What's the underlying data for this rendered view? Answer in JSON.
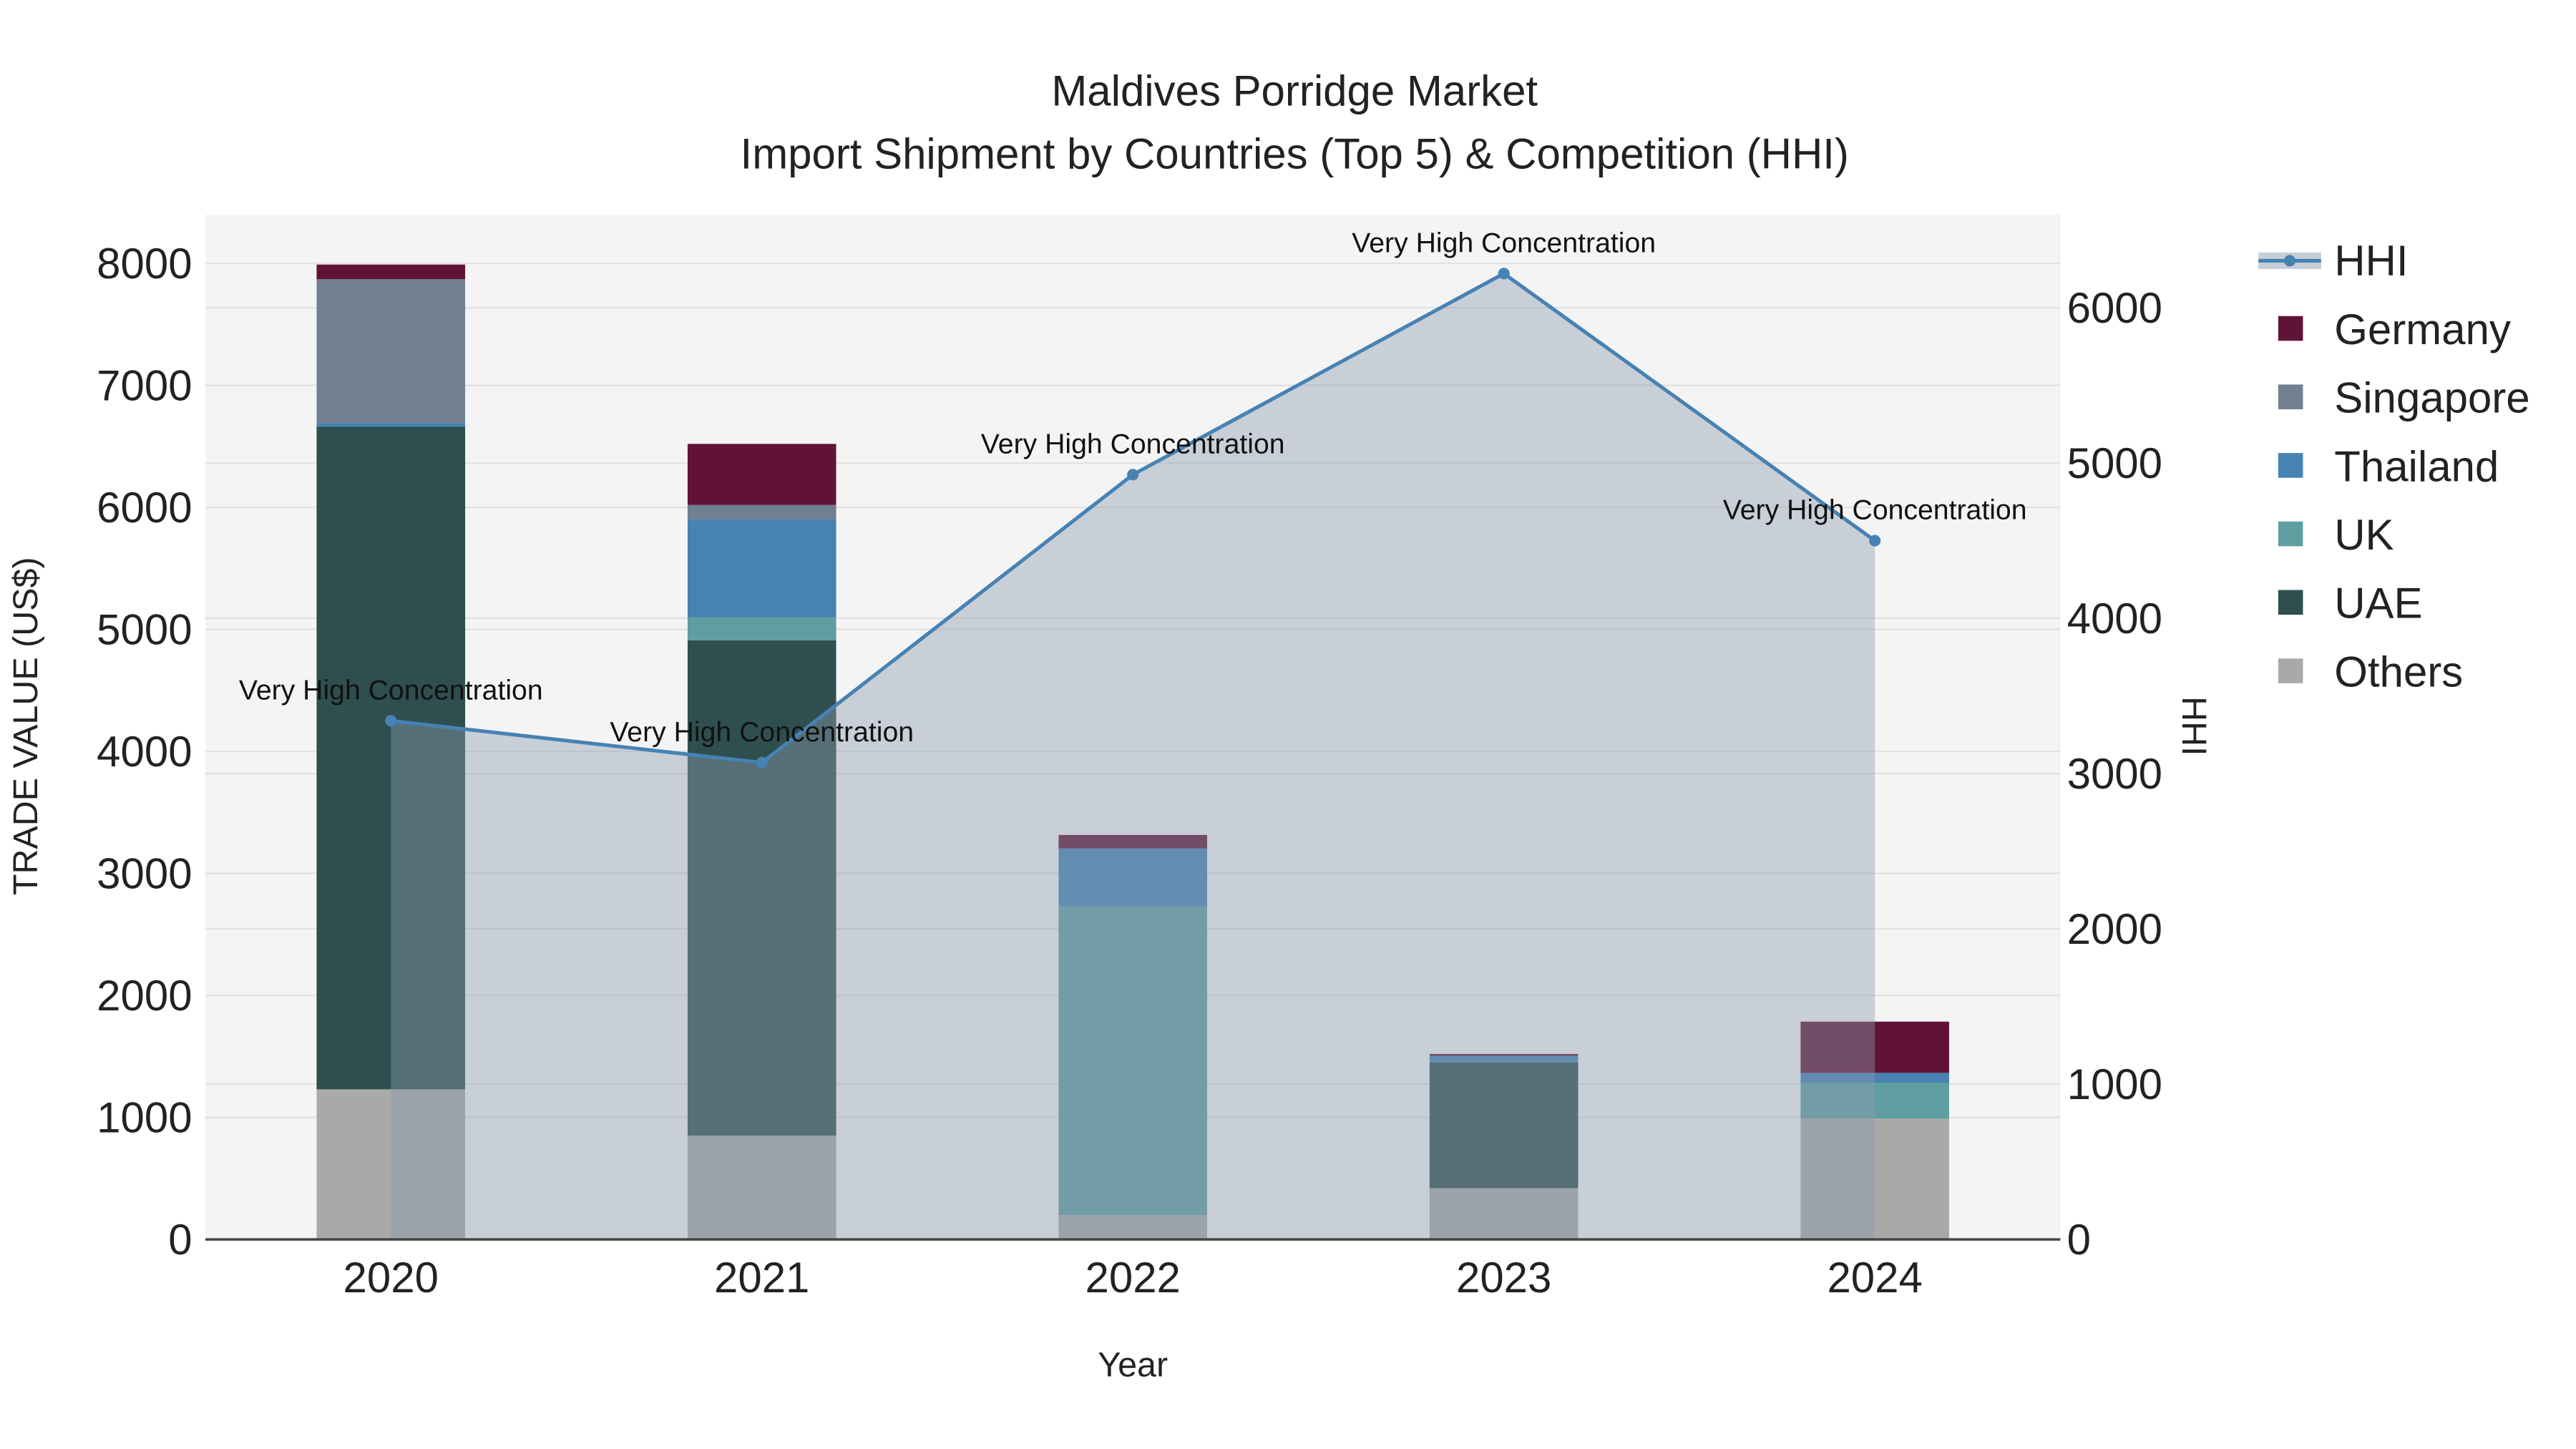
{
  "chart_data": {
    "type": "bar",
    "title_line1": "Maldives Porridge Market",
    "title_line2": "Import Shipment by Countries (Top 5) & Competition (HHI)",
    "xlabel": "Year",
    "ylabel": "TRADE VALUE (US$)",
    "y2label": "HHI",
    "categories": [
      "2020",
      "2021",
      "2022",
      "2023",
      "2024"
    ],
    "ylim": [
      0,
      8400
    ],
    "y2lim": [
      0,
      6600
    ],
    "yticks": [
      "0",
      "1000",
      "2000",
      "3000",
      "4000",
      "5000",
      "6000",
      "7000",
      "8000"
    ],
    "y2ticks": [
      "0",
      "1000",
      "2000",
      "3000",
      "4000",
      "5000",
      "6000"
    ],
    "stack_order": [
      "Others",
      "UAE",
      "UK",
      "Thailand",
      "Singapore",
      "Germany"
    ],
    "series": [
      {
        "name": "Others",
        "color": "#a9a9a9",
        "values": [
          1230,
          850,
          200,
          420,
          990
        ]
      },
      {
        "name": "UAE",
        "color": "#2f4f4f",
        "values": [
          5430,
          4060,
          0,
          1030,
          0
        ]
      },
      {
        "name": "UK",
        "color": "#5f9ea0",
        "values": [
          0,
          190,
          2530,
          0,
          295
        ]
      },
      {
        "name": "Thailand",
        "color": "#4682b4",
        "values": [
          30,
          800,
          475,
          55,
          80
        ]
      },
      {
        "name": "Singapore",
        "color": "#708090",
        "values": [
          1180,
          120,
          0,
          0,
          0
        ]
      },
      {
        "name": "Germany",
        "color": "#601336",
        "values": [
          120,
          500,
          110,
          15,
          420
        ]
      }
    ],
    "hhi": {
      "name": "HHI",
      "color": "#4682b4",
      "values": [
        3340,
        3070,
        4925,
        6220,
        4500
      ],
      "annotations": [
        "Very High Concentration",
        "Very High Concentration",
        "Very High Concentration",
        "Very High Concentration",
        "Very High Concentration"
      ]
    },
    "legend": [
      "HHI",
      "Germany",
      "Singapore",
      "Thailand",
      "UK",
      "UAE",
      "Others"
    ],
    "legend_position": "right",
    "grid": true
  }
}
